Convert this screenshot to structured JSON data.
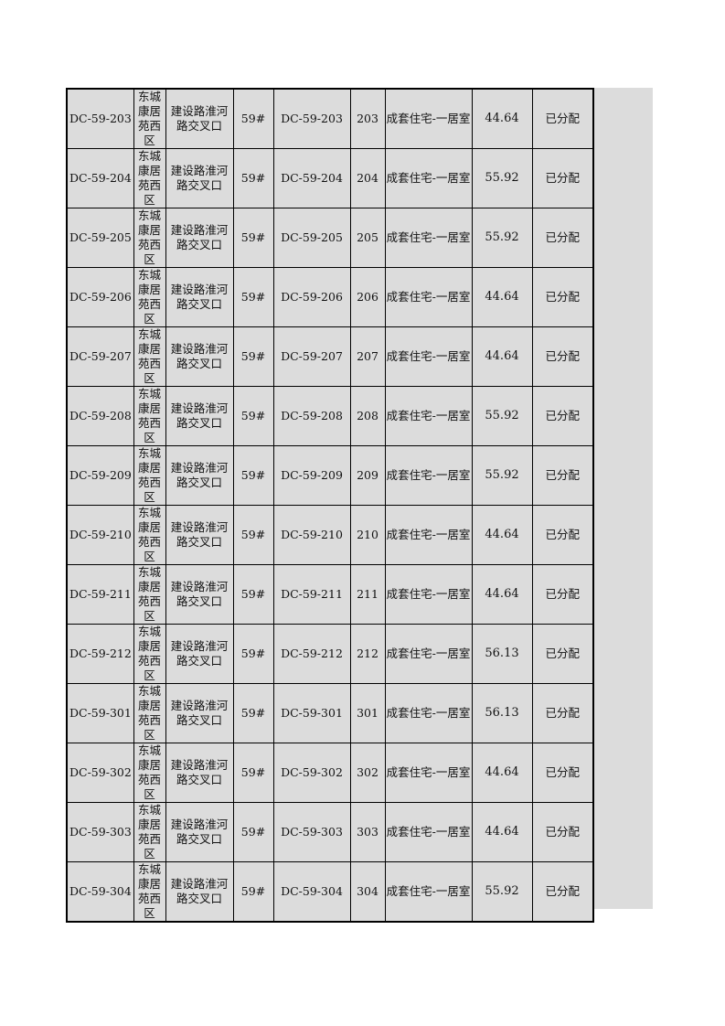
{
  "rows": [
    {
      "id": "DC-59-203",
      "community": "东城康居苑西区",
      "location": "建设路淮河路交叉口",
      "building": "59#",
      "unit_code": "DC-59-203",
      "room": "203",
      "type": "成套住宅-一居室",
      "area": "44.64",
      "status": "已分配"
    },
    {
      "id": "DC-59-204",
      "community": "东城康居苑西区",
      "location": "建设路淮河路交叉口",
      "building": "59#",
      "unit_code": "DC-59-204",
      "room": "204",
      "type": "成套住宅-一居室",
      "area": "55.92",
      "status": "已分配"
    },
    {
      "id": "DC-59-205",
      "community": "东城康居苑西区",
      "location": "建设路淮河路交叉口",
      "building": "59#",
      "unit_code": "DC-59-205",
      "room": "205",
      "type": "成套住宅-一居室",
      "area": "55.92",
      "status": "已分配"
    },
    {
      "id": "DC-59-206",
      "community": "东城康居苑西区",
      "location": "建设路淮河路交叉口",
      "building": "59#",
      "unit_code": "DC-59-206",
      "room": "206",
      "type": "成套住宅-一居室",
      "area": "44.64",
      "status": "已分配"
    },
    {
      "id": "DC-59-207",
      "community": "东城康居苑西区",
      "location": "建设路淮河路交叉口",
      "building": "59#",
      "unit_code": "DC-59-207",
      "room": "207",
      "type": "成套住宅-一居室",
      "area": "44.64",
      "status": "已分配"
    },
    {
      "id": "DC-59-208",
      "community": "东城康居苑西区",
      "location": "建设路淮河路交叉口",
      "building": "59#",
      "unit_code": "DC-59-208",
      "room": "208",
      "type": "成套住宅-一居室",
      "area": "55.92",
      "status": "已分配"
    },
    {
      "id": "DC-59-209",
      "community": "东城康居苑西区",
      "location": "建设路淮河路交叉口",
      "building": "59#",
      "unit_code": "DC-59-209",
      "room": "209",
      "type": "成套住宅-一居室",
      "area": "55.92",
      "status": "已分配"
    },
    {
      "id": "DC-59-210",
      "community": "东城康居苑西区",
      "location": "建设路淮河路交叉口",
      "building": "59#",
      "unit_code": "DC-59-210",
      "room": "210",
      "type": "成套住宅-一居室",
      "area": "44.64",
      "status": "已分配"
    },
    {
      "id": "DC-59-211",
      "community": "东城康居苑西区",
      "location": "建设路淮河路交叉口",
      "building": "59#",
      "unit_code": "DC-59-211",
      "room": "211",
      "type": "成套住宅-一居室",
      "area": "44.64",
      "status": "已分配"
    },
    {
      "id": "DC-59-212",
      "community": "东城康居苑西区",
      "location": "建设路淮河路交叉口",
      "building": "59#",
      "unit_code": "DC-59-212",
      "room": "212",
      "type": "成套住宅-一居室",
      "area": "56.13",
      "status": "已分配"
    },
    {
      "id": "DC-59-301",
      "community": "东城康居苑西区",
      "location": "建设路淮河路交叉口",
      "building": "59#",
      "unit_code": "DC-59-301",
      "room": "301",
      "type": "成套住宅-一居室",
      "area": "56.13",
      "status": "已分配"
    },
    {
      "id": "DC-59-302",
      "community": "东城康居苑西区",
      "location": "建设路淮河路交叉口",
      "building": "59#",
      "unit_code": "DC-59-302",
      "room": "302",
      "type": "成套住宅-一居室",
      "area": "44.64",
      "status": "已分配"
    },
    {
      "id": "DC-59-303",
      "community": "东城康居苑西区",
      "location": "建设路淮河路交叉口",
      "building": "59#",
      "unit_code": "DC-59-303",
      "room": "303",
      "type": "成套住宅-一居室",
      "area": "44.64",
      "status": "已分配"
    },
    {
      "id": "DC-59-304",
      "community": "东城康居苑西区",
      "location": "建设路淮河路交叉口",
      "building": "59#",
      "unit_code": "DC-59-304",
      "room": "304",
      "type": "成套住宅-一居室",
      "area": "55.92",
      "status": "已分配"
    }
  ]
}
